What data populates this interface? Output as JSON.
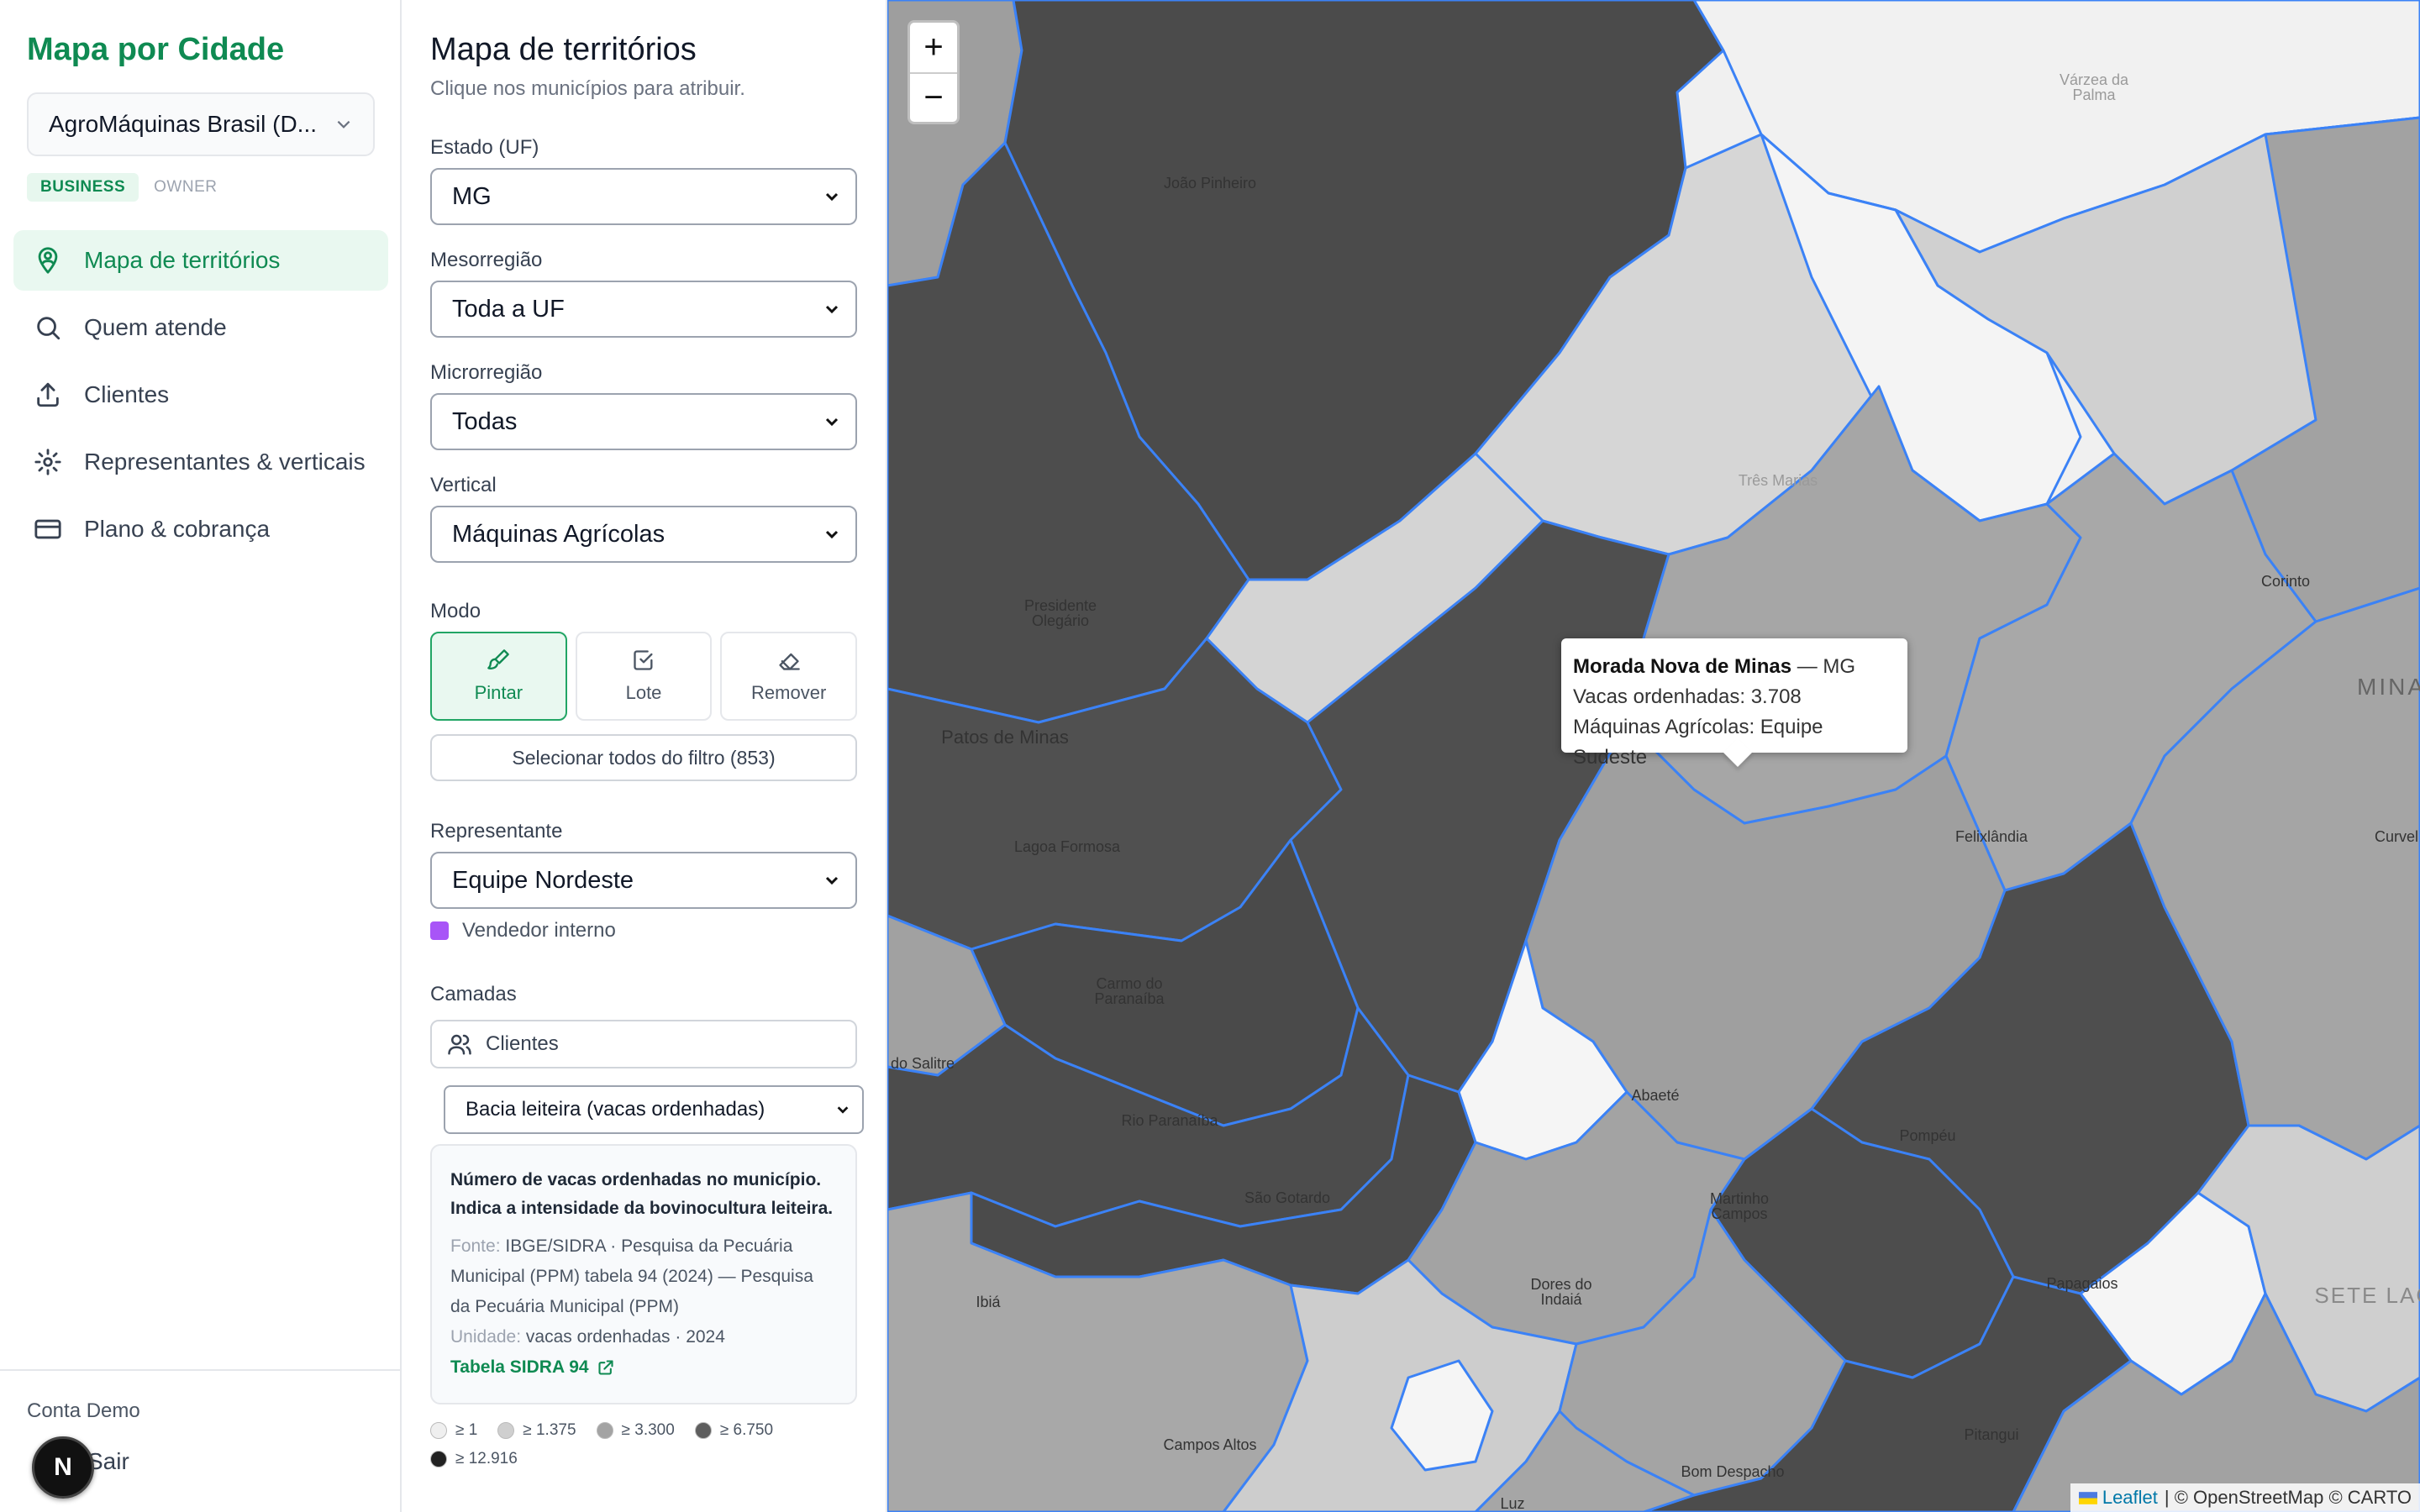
{
  "sidebar": {
    "app_title": "Mapa por Cidade",
    "account": "AgroMáquinas Brasil (D...",
    "badges": {
      "business": "BUSINESS",
      "owner": "OWNER"
    },
    "nav": [
      {
        "label": "Mapa de territórios",
        "icon": "map-pin-user-icon",
        "active": true
      },
      {
        "label": "Quem atende",
        "icon": "search-icon"
      },
      {
        "label": "Clientes",
        "icon": "upload-icon"
      },
      {
        "label": "Representantes & verticais",
        "icon": "gear-icon"
      },
      {
        "label": "Plano & cobrança",
        "icon": "credit-card-icon"
      }
    ],
    "user_name": "Conta Demo",
    "logout_label": "Sair",
    "avatar_letter": "N"
  },
  "panel": {
    "title": "Mapa de territórios",
    "subtitle": "Clique nos municípios para atribuir.",
    "state": {
      "label": "Estado (UF)",
      "value": "MG"
    },
    "mesoregion": {
      "label": "Mesorregião",
      "value": "Toda a UF"
    },
    "microregion": {
      "label": "Microrregião",
      "value": "Todas"
    },
    "vertical": {
      "label": "Vertical",
      "value": "Máquinas Agrícolas"
    },
    "mode": {
      "label": "Modo",
      "paint": "Pintar",
      "batch": "Lote",
      "remove": "Remover"
    },
    "select_all": "Selecionar todos do filtro (853)",
    "representative": {
      "label": "Representante",
      "value": "Equipe Nordeste"
    },
    "rep_legend": "Vendedor interno",
    "layers": {
      "label": "Camadas",
      "clients": "Clientes",
      "layer_value": "Bacia leiteira (vacas ordenhadas)"
    },
    "info": {
      "description": "Número de vacas ordenhadas no município. Indica a intensidade da bovinocultura leiteira.",
      "source_key": "Fonte:",
      "source_value": "IBGE/SIDRA · Pesquisa da Pecuária Municipal (PPM) tabela 94 (2024) — Pesquisa da Pecuária Municipal (PPM)",
      "unit_key": "Unidade:",
      "unit_value": "vacas ordenhadas · 2024",
      "link": "Tabela SIDRA 94"
    },
    "legend": [
      {
        "label": "≥ 1",
        "color": "#efefef"
      },
      {
        "label": "≥ 1.375",
        "color": "#cfcfcf"
      },
      {
        "label": "≥ 3.300",
        "color": "#a3a3a3"
      },
      {
        "label": "≥ 6.750",
        "color": "#5e5e5e"
      },
      {
        "label": "≥ 12.916",
        "color": "#222222"
      }
    ]
  },
  "map": {
    "zoom_in": "+",
    "zoom_out": "−",
    "tooltip": {
      "city": "Morada Nova de Minas",
      "state": " — MG",
      "cows": "Vacas ordenhadas: 3.708",
      "assignment": "Máquinas Agrícolas: Equipe Sudeste"
    },
    "labels": {
      "joao_pinheiro": "João Pinheiro",
      "varzea_palma": "Várzea da Palma",
      "tres_marias": "Três Marias",
      "presidente_olegario": "Presidente Olegário",
      "corinto": "Corinto",
      "patos_minas": "Patos de Minas",
      "minas": "MINA",
      "lagoa_formosa": "Lagoa Formosa",
      "felixlandia": "Felixlândia",
      "curvelo": "Curvel",
      "carmo_paranaiba": "Carmo do Paranaíba",
      "sao_salitre": "do Salitre",
      "abaete": "Abaeté",
      "rio_paranaiba": "Rio Paranaíba",
      "pompeu": "Pompéu",
      "sao_gotardo": "São Gotardo",
      "martinho_campos": "Martinho Campos",
      "dores_indaia": "Dores do Indaiá",
      "papagaios": "Papagaios",
      "sete_lagoas": "SETE LAG",
      "ibia": "Ibiá",
      "campos_altos": "Campos Altos",
      "pitangui": "Pitangui",
      "bom_despacho": "Bom Despacho",
      "luz": "Luz"
    },
    "attribution": {
      "leaflet": "Leaflet",
      "rest": "| © OpenStreetMap © CARTO"
    }
  }
}
